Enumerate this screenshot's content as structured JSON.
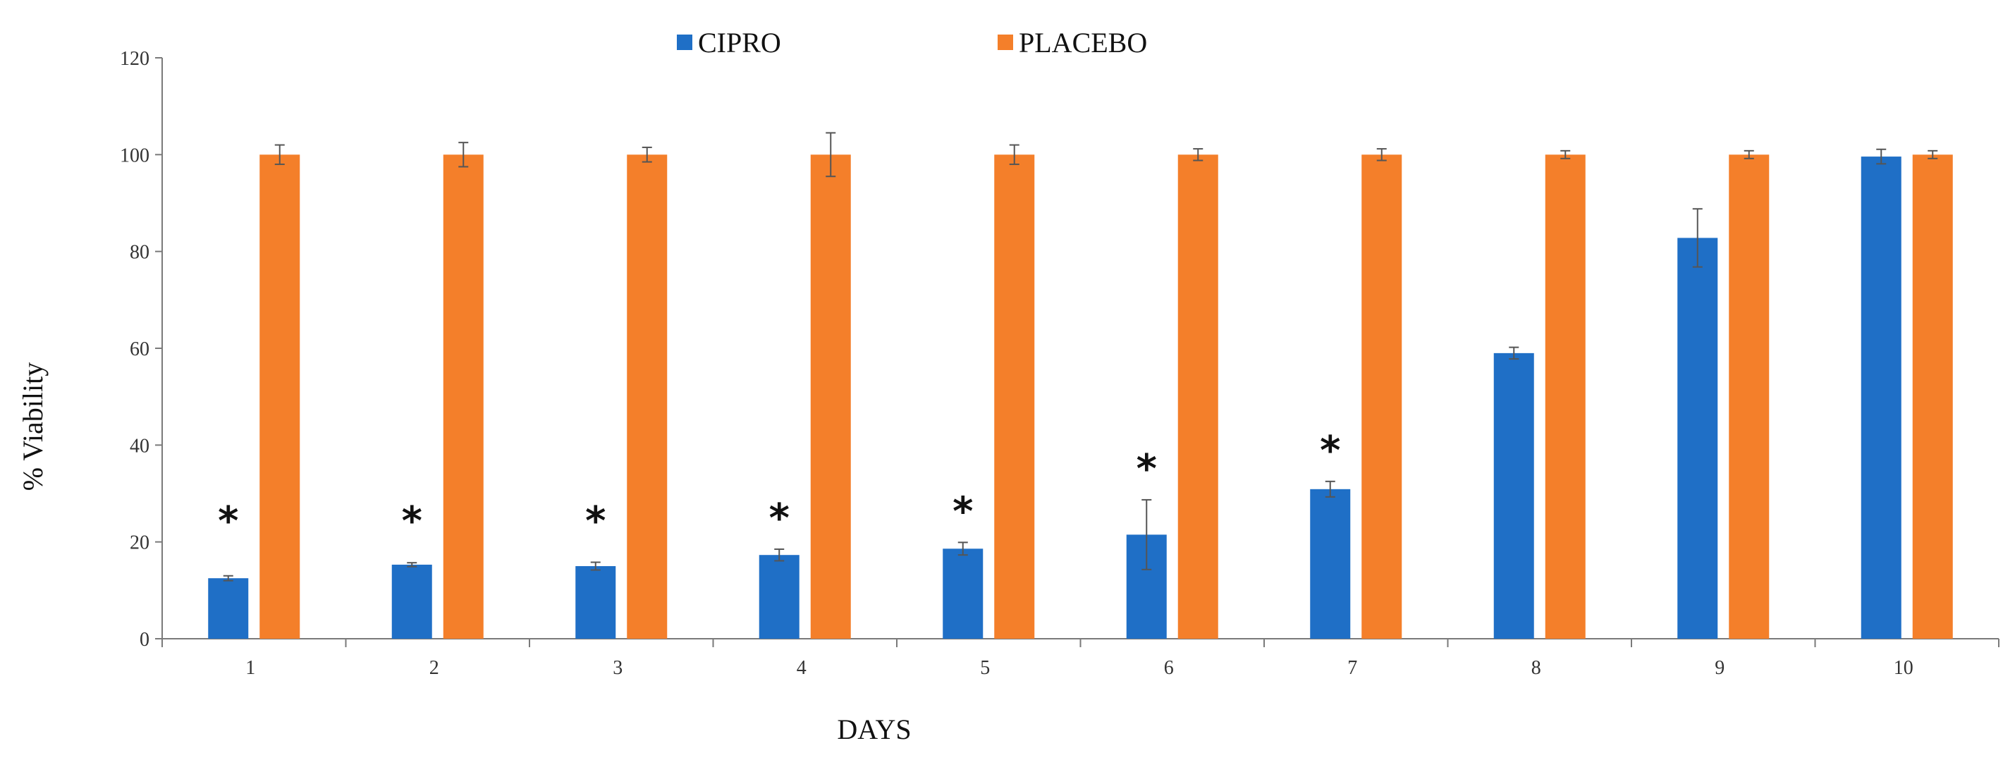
{
  "chart_data": {
    "type": "bar",
    "title": "",
    "xlabel": "DAYS",
    "ylabel": "% Viability",
    "ylim": [
      0,
      120
    ],
    "yticks": [
      0,
      20,
      40,
      60,
      80,
      100,
      120
    ],
    "grid": false,
    "legend_position": "top-center",
    "categories": [
      "1",
      "2",
      "3",
      "4",
      "5",
      "6",
      "7",
      "8",
      "9",
      "10"
    ],
    "series": [
      {
        "name": "CIPRO",
        "color": "#1f6fc6",
        "values": [
          12.5,
          15.3,
          15.0,
          17.3,
          18.6,
          21.5,
          30.9,
          59.0,
          82.8,
          99.6
        ],
        "errors": [
          0.5,
          0.4,
          0.8,
          1.2,
          1.3,
          7.2,
          1.6,
          1.2,
          6.0,
          1.5
        ]
      },
      {
        "name": "PLACEBO",
        "color": "#f47f2a",
        "values": [
          100,
          100,
          100,
          100,
          100,
          100,
          100,
          100,
          100,
          100
        ],
        "errors": [
          2.0,
          2.5,
          1.5,
          4.5,
          2.0,
          1.2,
          1.2,
          0.8,
          0.8,
          0.8
        ]
      }
    ],
    "annotations": [
      "*",
      "*",
      "*",
      "*",
      "*",
      "*",
      "*",
      "",
      "",
      ""
    ]
  }
}
